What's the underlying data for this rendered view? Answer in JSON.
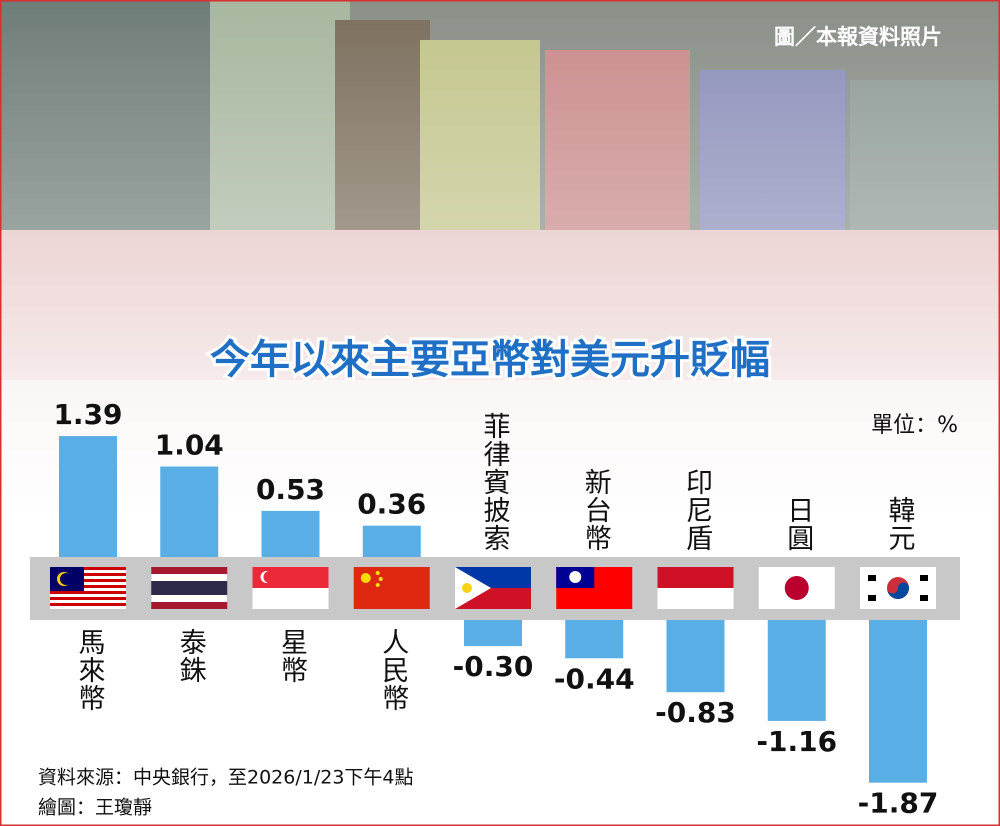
{
  "chart_data": {
    "type": "bar",
    "title": "今年以來主要亞幣對美元升貶幅",
    "unit": "單位：%",
    "photo_credit": "圖／本報資料照片",
    "source": "資料來源：中央銀行，至2026/1/23下午4點",
    "illustrator": "繪圖：王瓊靜",
    "categories": [
      "馬來幣",
      "泰銖",
      "星幣",
      "人民幣",
      "菲律賓披索",
      "新台幣",
      "印尼盾",
      "日圓",
      "韓元"
    ],
    "values": [
      1.39,
      1.04,
      0.53,
      0.36,
      -0.3,
      -0.44,
      -0.83,
      -1.16,
      -1.87
    ],
    "value_labels": [
      "1.39",
      "1.04",
      "0.53",
      "0.36",
      "-0.30",
      "-0.44",
      "-0.83",
      "-1.16",
      "-1.87"
    ],
    "color": "#5aaee6"
  }
}
